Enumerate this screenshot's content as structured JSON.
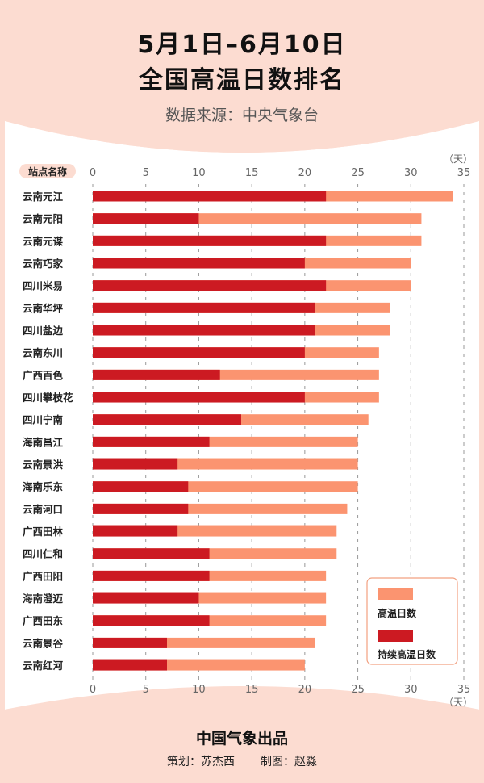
{
  "header": {
    "title_line1": "5月1日–6月10日",
    "title_line2": "全国高温日数排名",
    "source": "数据来源：中央气象台"
  },
  "footer": {
    "producer": "中国气象出品",
    "planner": "策划：苏杰西",
    "designer": "制图：赵淼"
  },
  "colors": {
    "background": "#fcdcd1",
    "high_temp_days": "#fb9470",
    "consecutive_high_temp_days": "#cc1a22"
  },
  "chart_data": {
    "type": "bar",
    "orientation": "horizontal",
    "category_header": "站点名称",
    "unit": "（天）",
    "xlim": [
      0,
      35
    ],
    "ticks": [
      0,
      5,
      10,
      15,
      20,
      25,
      30,
      35
    ],
    "grid": "dashed vertical at ticks",
    "legend_placement": "bottom-right",
    "categories": [
      "云南元江",
      "云南元阳",
      "云南元谋",
      "云南巧家",
      "四川米易",
      "云南华坪",
      "四川盐边",
      "云南东川",
      "广西百色",
      "四川攀枝花",
      "四川宁南",
      "海南昌江",
      "云南景洪",
      "海南乐东",
      "云南河口",
      "广西田林",
      "四川仁和",
      "广西田阳",
      "海南澄迈",
      "广西田东",
      "云南景谷",
      "云南红河"
    ],
    "series": [
      {
        "name": "高温日数",
        "values": [
          34,
          31,
          31,
          30,
          30,
          28,
          28,
          27,
          27,
          27,
          26,
          25,
          25,
          25,
          24,
          23,
          23,
          22,
          22,
          22,
          21,
          20
        ]
      },
      {
        "name": "持续高温日数",
        "values": [
          22,
          10,
          22,
          20,
          22,
          21,
          21,
          20,
          12,
          20,
          14,
          11,
          8,
          9,
          9,
          8,
          11,
          11,
          10,
          11,
          7,
          7
        ]
      }
    ]
  }
}
